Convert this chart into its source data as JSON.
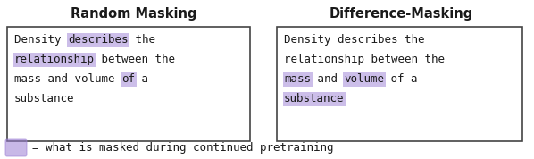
{
  "title_left": "Random Masking",
  "title_right": "Difference-Masking",
  "bg_color": "#ffffff",
  "box_border_color": "#444444",
  "highlight_color": "#9b7fd4",
  "highlight_alpha": 0.5,
  "text_color": "#1a1a1a",
  "font_family": "monospace",
  "legend_text": "= what is masked during continued pretraining",
  "left_lines": [
    [
      {
        "text": "Density ",
        "h": false
      },
      {
        "text": "describes",
        "h": true
      },
      {
        "text": " the",
        "h": false
      }
    ],
    [
      {
        "text": "relationship",
        "h": true
      },
      {
        "text": " between the",
        "h": false
      }
    ],
    [
      {
        "text": "mass and volume ",
        "h": false
      },
      {
        "text": "of",
        "h": true
      },
      {
        "text": " a",
        "h": false
      }
    ],
    [
      {
        "text": "substance",
        "h": false
      }
    ]
  ],
  "right_lines": [
    [
      {
        "text": "Density describes the",
        "h": false
      }
    ],
    [
      {
        "text": "relationship between the",
        "h": false
      }
    ],
    [
      {
        "text": "mass",
        "h": true
      },
      {
        "text": " and ",
        "h": false
      },
      {
        "text": "volume",
        "h": true
      },
      {
        "text": " of a",
        "h": false
      }
    ],
    [
      {
        "text": "substance",
        "h": true
      }
    ]
  ]
}
